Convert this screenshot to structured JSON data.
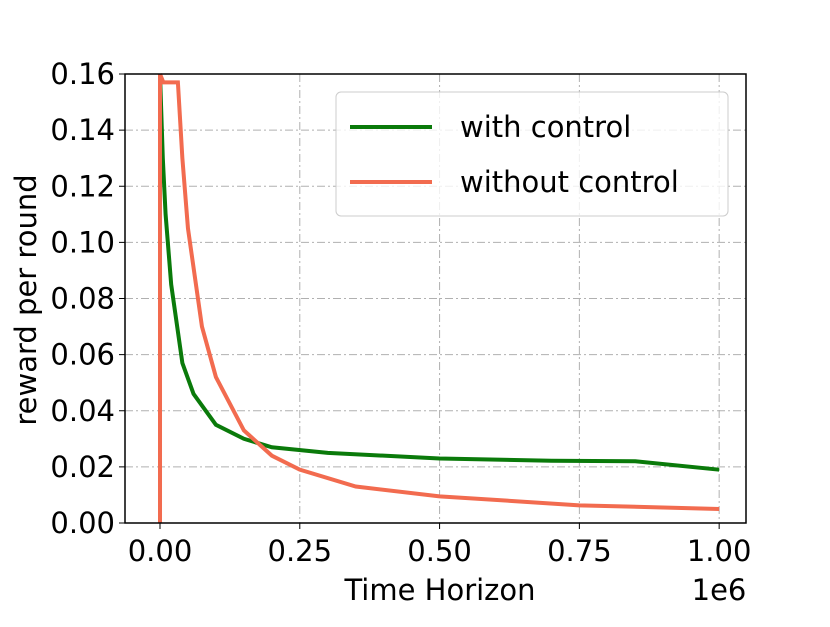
{
  "chart_data": {
    "type": "line",
    "xlabel": "Time Horizon",
    "ylabel": "reward per round",
    "x_offset_label": "1e6",
    "xlim": [
      -0.0626,
      1.048
    ],
    "ylim": [
      0,
      0.16
    ],
    "xticks": [
      {
        "value": 0,
        "label": "0.00"
      },
      0.25,
      {
        "value": 0.5,
        "label": "0.50"
      },
      0.75,
      {
        "value": 1,
        "label": "1.00"
      }
    ],
    "yticks": [
      {
        "value": 0,
        "label": "0.00"
      },
      0.02,
      0.04,
      0.06,
      0.08,
      {
        "value": 0.1,
        "label": "0.10"
      },
      0.12,
      0.14,
      0.16
    ],
    "grid": true,
    "legend": "upper right",
    "series": [
      {
        "name": "with control",
        "color": "#0a7a0a",
        "x": [
          0,
          0.005,
          0.01,
          0.02,
          0.04,
          0.06,
          0.1,
          0.15,
          0.2,
          0.3,
          0.5,
          0.7,
          0.85,
          1.0
        ],
        "values": [
          0.16,
          0.13,
          0.11,
          0.085,
          0.057,
          0.046,
          0.035,
          0.03,
          0.027,
          0.025,
          0.023,
          0.0222,
          0.022,
          0.019
        ]
      },
      {
        "name": "without control",
        "color": "#f26b4f",
        "x": [
          0,
          0,
          0.006,
          0.032,
          0.04,
          0.05,
          0.075,
          0.1,
          0.15,
          0.2,
          0.25,
          0.35,
          0.5,
          0.75,
          1.0
        ],
        "values": [
          0,
          0.16,
          0.157,
          0.157,
          0.13,
          0.105,
          0.07,
          0.052,
          0.033,
          0.024,
          0.019,
          0.013,
          0.0095,
          0.0063,
          0.005
        ]
      }
    ]
  }
}
